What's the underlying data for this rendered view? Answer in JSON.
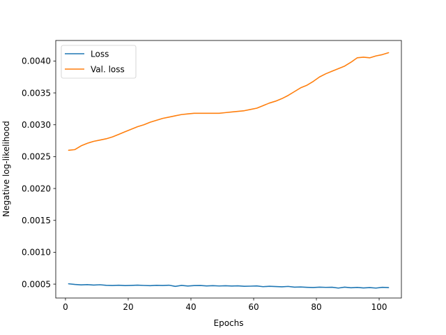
{
  "chart_data": {
    "type": "line",
    "title": "",
    "xlabel": "Epochs",
    "ylabel": "Negative log-likelihood",
    "xlim": [
      -3.1,
      107.1
    ],
    "ylim": [
      0.000282,
      0.004322
    ],
    "xticks": [
      0,
      20,
      40,
      60,
      80,
      100
    ],
    "yticks": [
      0.0005,
      0.001,
      0.0015,
      0.002,
      0.0025,
      0.003,
      0.0035,
      0.004
    ],
    "ytick_labels": [
      "0.0005",
      "0.0010",
      "0.0015",
      "0.0020",
      "0.0025",
      "0.0030",
      "0.0035",
      "0.0040"
    ],
    "grid": false,
    "legend_position": "top-left",
    "series": [
      {
        "name": "Loss",
        "color": "#1f77b4",
        "x": [
          1,
          3,
          5,
          7,
          9,
          11,
          13,
          15,
          17,
          19,
          21,
          23,
          25,
          27,
          29,
          31,
          33,
          35,
          37,
          39,
          41,
          43,
          45,
          47,
          49,
          51,
          53,
          55,
          57,
          59,
          61,
          63,
          65,
          67,
          69,
          71,
          73,
          75,
          77,
          79,
          81,
          83,
          85,
          87,
          89,
          91,
          93,
          95,
          97,
          99,
          101,
          103
        ],
        "y": [
          0.000505,
          0.000495,
          0.000488,
          0.000492,
          0.000485,
          0.00049,
          0.000481,
          0.000478,
          0.000482,
          0.000477,
          0.00048,
          0.000484,
          0.000479,
          0.000476,
          0.000481,
          0.000478,
          0.000483,
          0.000465,
          0.00048,
          0.00047,
          0.000477,
          0.000478,
          0.000472,
          0.000476,
          0.000471,
          0.000474,
          0.00047,
          0.000473,
          0.000466,
          0.000468,
          0.000472,
          0.00046,
          0.000466,
          0.000462,
          0.000458,
          0.000464,
          0.000452,
          0.000455,
          0.00045,
          0.000447,
          0.000452,
          0.000449,
          0.000451,
          0.000438,
          0.000452,
          0.000443,
          0.000448,
          0.00044,
          0.000446,
          0.000438,
          0.00045,
          0.000445
        ]
      },
      {
        "name": "Val. loss",
        "color": "#ff7f0e",
        "x": [
          1,
          3,
          5,
          7,
          9,
          11,
          13,
          15,
          17,
          19,
          21,
          23,
          25,
          27,
          29,
          31,
          33,
          35,
          37,
          39,
          41,
          43,
          45,
          47,
          49,
          51,
          53,
          55,
          57,
          59,
          61,
          63,
          65,
          67,
          69,
          71,
          73,
          75,
          77,
          79,
          81,
          83,
          85,
          87,
          89,
          91,
          93,
          95,
          97,
          99,
          101,
          103
        ],
        "y": [
          0.0026,
          0.00261,
          0.00267,
          0.00271,
          0.00274,
          0.00276,
          0.00278,
          0.00281,
          0.00285,
          0.00289,
          0.00293,
          0.00297,
          0.003,
          0.00304,
          0.00307,
          0.0031,
          0.00312,
          0.00314,
          0.00316,
          0.00317,
          0.00318,
          0.00318,
          0.00318,
          0.00318,
          0.00318,
          0.00319,
          0.0032,
          0.00321,
          0.00322,
          0.00324,
          0.00326,
          0.0033,
          0.00334,
          0.00337,
          0.00341,
          0.00346,
          0.00352,
          0.00358,
          0.00362,
          0.00368,
          0.00375,
          0.0038,
          0.00384,
          0.00388,
          0.00392,
          0.00398,
          0.00405,
          0.00406,
          0.00405,
          0.00408,
          0.0041,
          0.00413
        ]
      }
    ]
  }
}
